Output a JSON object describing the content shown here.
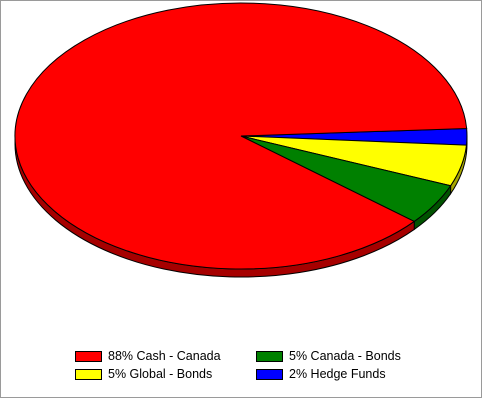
{
  "chart_data": {
    "type": "pie",
    "style": "3d",
    "legend_position": "bottom",
    "slices": [
      {
        "label": "88% Cash - Canada",
        "value": 88,
        "color": "#ff0000"
      },
      {
        "label": "5% Canada - Bonds",
        "value": 5,
        "color": "#008000"
      },
      {
        "label": "5% Global - Bonds",
        "value": 5,
        "color": "#ffff00"
      },
      {
        "label": "2% Hedge Funds",
        "value": 2,
        "color": "#0000ff"
      }
    ]
  },
  "legend": {
    "items": [
      {
        "label": "88% Cash - Canada",
        "color": "#ff0000"
      },
      {
        "label": "5% Canada - Bonds",
        "color": "#008000"
      },
      {
        "label": "5% Global - Bonds",
        "color": "#ffff00"
      },
      {
        "label": "2% Hedge Funds",
        "color": "#0000ff"
      }
    ]
  }
}
